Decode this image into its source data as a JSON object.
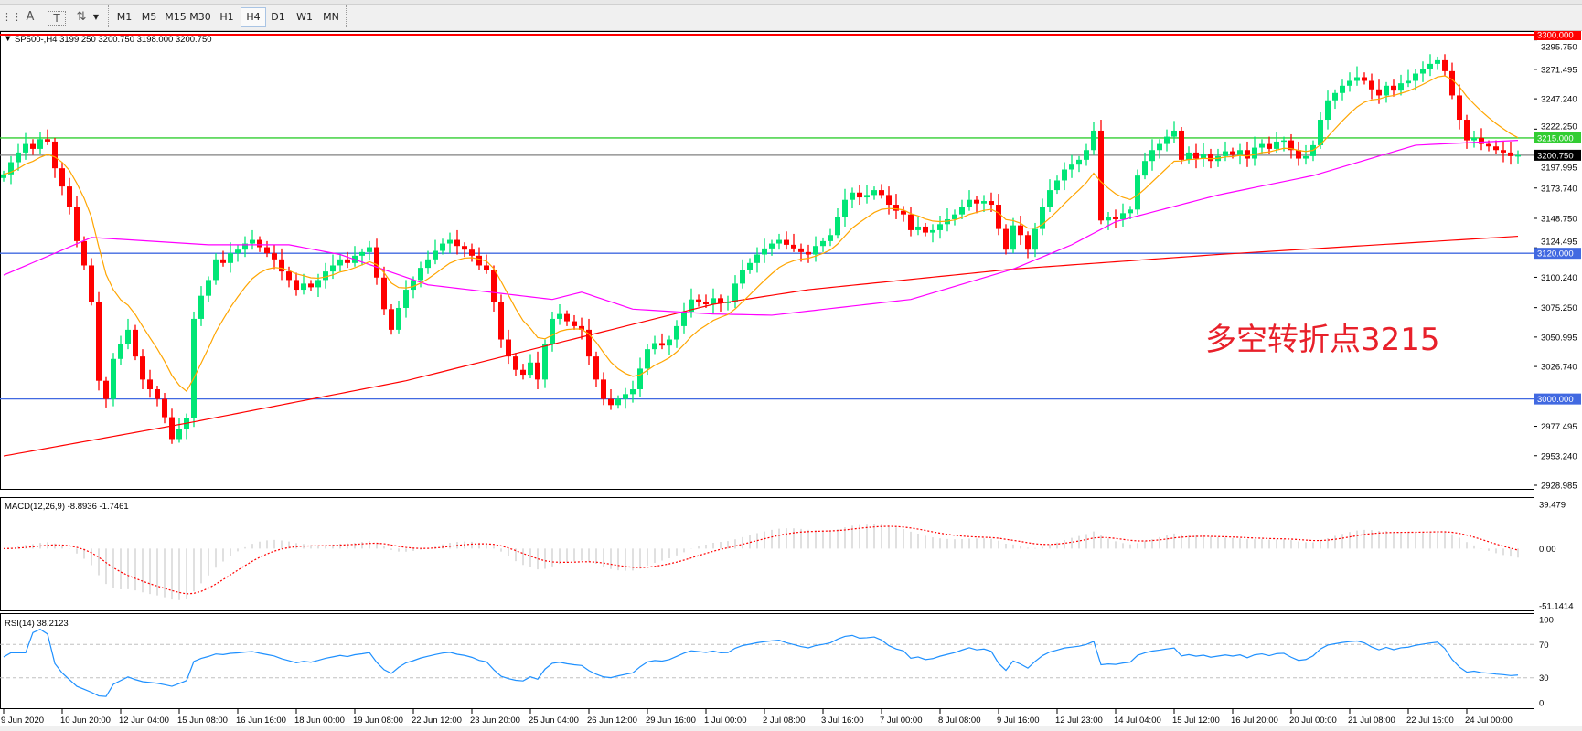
{
  "toolbar": {
    "tools": [
      {
        "name": "period-separator-icon",
        "glyph": "⋮⋮"
      },
      {
        "name": "text-tool-icon",
        "glyph": "A"
      },
      {
        "name": "text-label-tool-icon",
        "glyph": "T"
      },
      {
        "name": "arrows-tool-icon",
        "glyph": "⇅"
      }
    ],
    "timeframes": [
      "M1",
      "M5",
      "M15",
      "M30",
      "H1",
      "H4",
      "D1",
      "W1",
      "MN"
    ],
    "selected_timeframe": "H4"
  },
  "chart_header": {
    "label": "SP500-,H4  3199.250 3200.750 3198.000 3200.750"
  },
  "annotation": "多空转折点3215",
  "colors": {
    "bull": "#00e676",
    "bear": "#ff0000",
    "ma_fast": "#ffa500",
    "ma_mid": "#ff00ff",
    "ma_slow": "#ff0000",
    "level_red": "#ff0000",
    "level_green": "#32cd32",
    "level_blue": "#4169e1",
    "price_line": "#808080",
    "macd_hist": "#c0c0c0",
    "macd_signal": "#ff0000",
    "rsi": "#1e90ff"
  },
  "chart_data": [
    {
      "type": "candlestick",
      "symbol": "SP500-",
      "timeframe": "H4",
      "ylim": [
        2928.985,
        3300
      ],
      "yticks": [
        "3295.750",
        "3271.495",
        "3247.240",
        "3222.250",
        "3197.995",
        "3173.740",
        "3148.750",
        "3124.495",
        "3100.240",
        "3075.250",
        "3050.995",
        "3026.740",
        "2977.495",
        "2953.240",
        "2928.985"
      ],
      "ytick_values": [
        3295.75,
        3271.495,
        3247.24,
        3222.25,
        3197.995,
        3173.74,
        3148.75,
        3124.495,
        3100.24,
        3075.25,
        3050.995,
        3026.74,
        2977.495,
        2953.24,
        2928.985
      ],
      "xticks": [
        {
          "bar": 0,
          "label": "9 Jun 2020"
        },
        {
          "bar": 8,
          "label": "10 Jun 20:00"
        },
        {
          "bar": 16,
          "label": "12 Jun 04:00"
        },
        {
          "bar": 24,
          "label": "15 Jun 08:00"
        },
        {
          "bar": 32,
          "label": "16 Jun 16:00"
        },
        {
          "bar": 40,
          "label": "18 Jun 00:00"
        },
        {
          "bar": 48,
          "label": "19 Jun 08:00"
        },
        {
          "bar": 56,
          "label": "22 Jun 12:00"
        },
        {
          "bar": 64,
          "label": "23 Jun 20:00"
        },
        {
          "bar": 72,
          "label": "25 Jun 04:00"
        },
        {
          "bar": 80,
          "label": "26 Jun 12:00"
        },
        {
          "bar": 88,
          "label": "29 Jun 16:00"
        },
        {
          "bar": 96,
          "label": "1 Jul 00:00"
        },
        {
          "bar": 104,
          "label": "2 Jul 08:00"
        },
        {
          "bar": 112,
          "label": "3 Jul 16:00"
        },
        {
          "bar": 120,
          "label": "7 Jul 00:00"
        },
        {
          "bar": 128,
          "label": "8 Jul 08:00"
        },
        {
          "bar": 136,
          "label": "9 Jul 16:00"
        },
        {
          "bar": 144,
          "label": "12 Jul 23:00"
        },
        {
          "bar": 152,
          "label": "14 Jul 04:00"
        },
        {
          "bar": 160,
          "label": "15 Jul 12:00"
        },
        {
          "bar": 168,
          "label": "16 Jul 20:00"
        },
        {
          "bar": 176,
          "label": "20 Jul 00:00"
        },
        {
          "bar": 184,
          "label": "21 Jul 08:00"
        },
        {
          "bar": 192,
          "label": "22 Jul 16:00"
        },
        {
          "bar": 200,
          "label": "24 Jul 00:00"
        }
      ],
      "close": [
        3185,
        3195,
        3203,
        3210,
        3206,
        3214,
        3212,
        3190,
        3175,
        3158,
        3130,
        3110,
        3080,
        3015,
        3000,
        3033,
        3045,
        3057,
        3035,
        3016,
        3008,
        3000,
        2985,
        2967,
        2975,
        2984,
        3066,
        3085,
        3098,
        3115,
        3112,
        3120,
        3123,
        3128,
        3131,
        3125,
        3120,
        3115,
        3105,
        3098,
        3090,
        3095,
        3092,
        3098,
        3105,
        3110,
        3115,
        3112,
        3118,
        3121,
        3125,
        3100,
        3074,
        3057,
        3075,
        3090,
        3098,
        3108,
        3115,
        3122,
        3128,
        3131,
        3126,
        3123,
        3118,
        3110,
        3106,
        3080,
        3049,
        3035,
        3024,
        3020,
        3030,
        3016,
        3045,
        3066,
        3070,
        3064,
        3060,
        3057,
        3035,
        3016,
        3000,
        2995,
        3000,
        3004,
        3008,
        3025,
        3041,
        3046,
        3044,
        3049,
        3060,
        3072,
        3082,
        3080,
        3078,
        3083,
        3079,
        3080,
        3095,
        3106,
        3112,
        3119,
        3124,
        3128,
        3131,
        3127,
        3124,
        3121,
        3119,
        3126,
        3130,
        3135,
        3150,
        3164,
        3170,
        3166,
        3168,
        3172,
        3168,
        3160,
        3155,
        3152,
        3139,
        3142,
        3137,
        3139,
        3144,
        3148,
        3152,
        3158,
        3164,
        3161,
        3163,
        3160,
        3140,
        3123,
        3143,
        3135,
        3123,
        3140,
        3158,
        3172,
        3180,
        3189,
        3193,
        3197,
        3205,
        3221,
        3147,
        3150,
        3148,
        3153,
        3156,
        3184,
        3196,
        3205,
        3210,
        3216,
        3221,
        3197,
        3203,
        3198,
        3202,
        3196,
        3200,
        3204,
        3201,
        3205,
        3198,
        3207,
        3210,
        3206,
        3212,
        3213,
        3205,
        3198,
        3200,
        3209,
        3230,
        3246,
        3252,
        3258,
        3262,
        3265,
        3262,
        3255,
        3250,
        3258,
        3254,
        3260,
        3262,
        3268,
        3272,
        3276,
        3279,
        3270,
        3250,
        3230,
        3213,
        3215,
        3210,
        3208,
        3205,
        3203,
        3200,
        3200.75
      ],
      "ma_mid_points": [
        [
          0,
          3102
        ],
        [
          12,
          3133
        ],
        [
          28,
          3127
        ],
        [
          39,
          3127
        ],
        [
          46,
          3119
        ],
        [
          58,
          3094
        ],
        [
          75,
          3082
        ],
        [
          79,
          3088
        ],
        [
          86,
          3074
        ],
        [
          97,
          3070
        ],
        [
          105,
          3069
        ],
        [
          124,
          3082
        ],
        [
          138,
          3107
        ],
        [
          146,
          3127
        ],
        [
          152,
          3146
        ],
        [
          166,
          3168
        ],
        [
          179,
          3184
        ],
        [
          193,
          3209
        ],
        [
          207,
          3213
        ]
      ],
      "ma_slow_points": [
        [
          0,
          2953
        ],
        [
          25,
          2980
        ],
        [
          55,
          3015
        ],
        [
          83,
          3057
        ],
        [
          97,
          3078
        ],
        [
          110,
          3090
        ],
        [
          138,
          3107
        ],
        [
          166,
          3119
        ],
        [
          207,
          3134
        ]
      ],
      "levels": [
        {
          "price": 3300,
          "label": "3300.000",
          "color": "#ff0000"
        },
        {
          "price": 3215,
          "label": "3215.000",
          "color": "#32cd32"
        },
        {
          "price": 3200.75,
          "label": "3200.750",
          "color": "#000000",
          "line": "#808080"
        },
        {
          "price": 3120,
          "label": "3120.000",
          "color": "#4169e1"
        },
        {
          "price": 3000,
          "label": "3000.000",
          "color": "#4169e1"
        }
      ]
    },
    {
      "type": "bar",
      "indicator": "MACD",
      "label": "MACD(12,26,9) -8.8936 -1.7461",
      "ylim": [
        -51.1414,
        39.479
      ],
      "yticks": [
        "39.479",
        "0.00",
        "-51.1414"
      ]
    },
    {
      "type": "line",
      "indicator": "RSI",
      "label": "RSI(14) 38.2123",
      "ylim": [
        0,
        100
      ],
      "levels": [
        70,
        30
      ],
      "yticks": [
        "100",
        "70",
        "30",
        "0"
      ]
    }
  ]
}
